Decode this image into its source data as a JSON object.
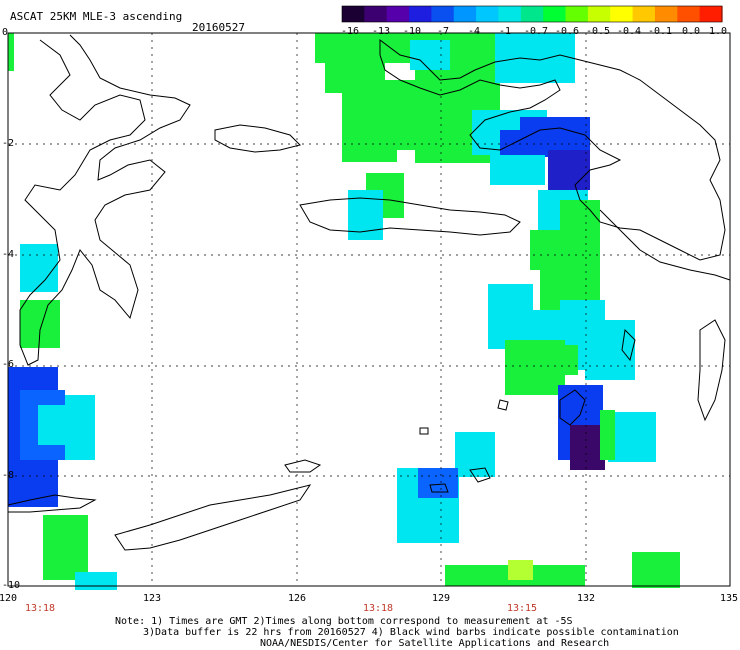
{
  "header": {
    "title": "ASCAT 25KM MLE-3 ascending",
    "date": "20160527"
  },
  "colorbar": {
    "labels": [
      "-16",
      "-13",
      "-10",
      "-7",
      "-4",
      "-1",
      "-0.7",
      "-0.6",
      "-0.5",
      "-0.4",
      "-0.1",
      "0.0",
      "1.0"
    ],
    "colors": [
      "#1a0033",
      "#3d0070",
      "#5500aa",
      "#1e1ee0",
      "#0a50f0",
      "#0096ff",
      "#00c8ff",
      "#00e6e6",
      "#00e68c",
      "#00ff32",
      "#64ff00",
      "#c8ff00",
      "#ffff00",
      "#ffc800",
      "#ff8c00",
      "#ff5000",
      "#ff1e00"
    ]
  },
  "axes": {
    "lat_labels": [
      "0",
      "-2",
      "-4",
      "-6",
      "-8",
      "-10"
    ],
    "lon_labels": [
      "120",
      "123",
      "126",
      "129",
      "132",
      "135"
    ],
    "time_labels": [
      "13:18",
      "13:18",
      "13:15"
    ]
  },
  "notes": {
    "line1": "Note: 1) Times are GMT 2)Times along bottom correspond to measurement at -5S",
    "line2": "3)Data buffer is 22 hrs from 20160527 4) Black wind barbs indicate possible contamination",
    "line3": "NOAA/NESDIS/Center for Satellite Applications and Research"
  }
}
